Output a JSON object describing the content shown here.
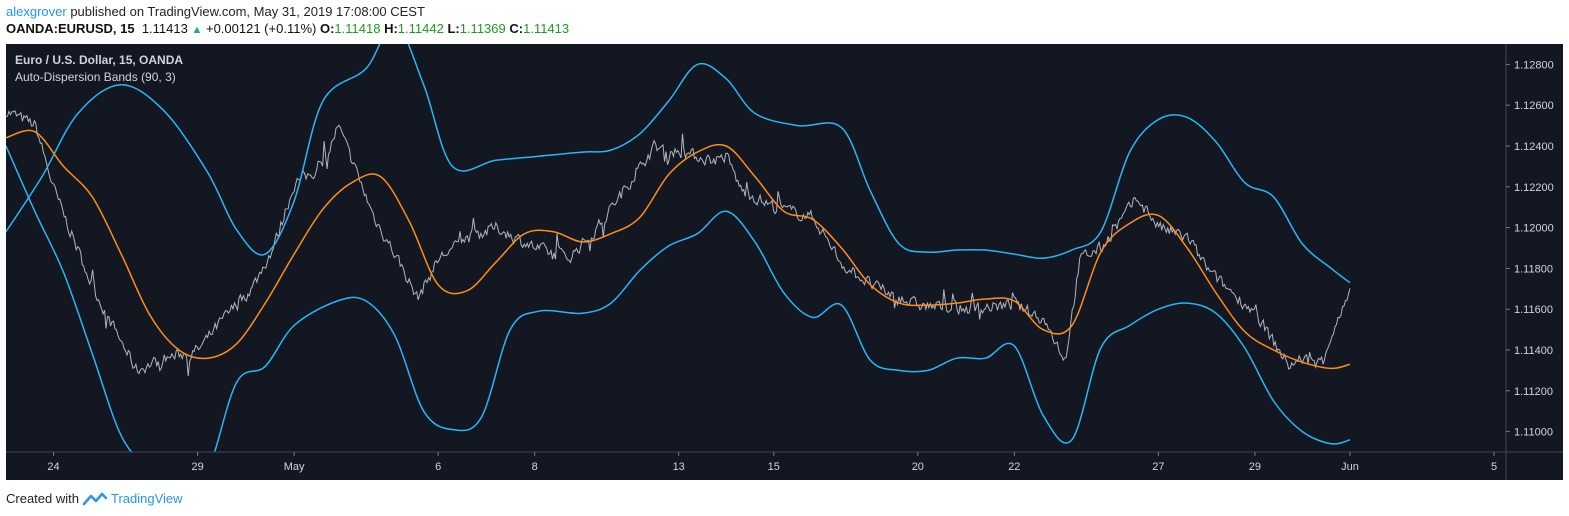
{
  "header": {
    "author": "alexgrover",
    "published_text": "published on TradingView.com, May 31, 2019 17:08:00 CEST",
    "symbol": "OANDA:EURUSD, 15",
    "last": "1.11413",
    "change": "+0.00121 (+0.11%)",
    "o_label": "O:",
    "o_value": "1.11418",
    "h_label": "H:",
    "h_value": "1.11442",
    "l_label": "L:",
    "l_value": "1.11369",
    "c_label": "C:",
    "c_value": "1.11413"
  },
  "legend": {
    "title": "Euro / U.S. Dollar, 15, OANDA",
    "indicator": "Auto-Dispersion Bands (90, 3)"
  },
  "footer": {
    "created_with": "Created with",
    "brand": "TradingView"
  },
  "colors": {
    "background": "#131722",
    "price": "#b2b5be",
    "upper_band": "#29b6f6",
    "lower_band": "#29b6f6",
    "mid_band": "#ff8c1a",
    "axis_text": "#d1d4dc"
  },
  "chart_data": {
    "type": "line",
    "ylim": [
      1.109,
      1.129
    ],
    "y_ticks": [
      "1.12800",
      "1.12600",
      "1.12400",
      "1.12200",
      "1.12000",
      "1.11800",
      "1.11600",
      "1.11400",
      "1.11200",
      "1.11000"
    ],
    "x_ticks": [
      "24",
      "29",
      "May",
      "6",
      "8",
      "13",
      "15",
      "20",
      "22",
      "27",
      "29",
      "Jun",
      "5"
    ],
    "x_tick_pos": [
      0.33,
      1.33,
      2,
      3,
      3.67,
      4.67,
      5.33,
      6.33,
      7,
      8,
      8.67,
      9.33,
      10.33
    ],
    "x_range": [
      0,
      10.33
    ],
    "series": [
      {
        "key": "upper",
        "x": [
          0,
          0.25,
          0.5,
          0.8,
          1.1,
          1.4,
          1.6,
          1.8,
          2.0,
          2.2,
          2.5,
          2.7,
          2.9,
          3.1,
          3.4,
          3.7,
          4.0,
          4.2,
          4.4,
          4.6,
          4.8,
          5.0,
          5.2,
          5.5,
          5.8,
          6.0,
          6.2,
          6.4,
          6.6,
          6.8,
          7.0,
          7.2,
          7.4,
          7.6,
          7.8,
          8.0,
          8.2,
          8.4,
          8.6,
          8.8,
          9.0,
          9.2,
          9.33
        ],
        "values": [
          1.1198,
          1.1225,
          1.1256,
          1.127,
          1.1257,
          1.1227,
          1.1199,
          1.1187,
          1.1213,
          1.1262,
          1.1278,
          1.13,
          1.127,
          1.123,
          1.1233,
          1.1235,
          1.1237,
          1.1238,
          1.1246,
          1.1262,
          1.128,
          1.1273,
          1.1256,
          1.125,
          1.1249,
          1.1218,
          1.1192,
          1.1188,
          1.1189,
          1.1189,
          1.1187,
          1.1185,
          1.1189,
          1.1198,
          1.1237,
          1.1253,
          1.1254,
          1.1242,
          1.1222,
          1.1215,
          1.1192,
          1.118,
          1.1173
        ]
      },
      {
        "key": "lower",
        "x": [
          0,
          0.2,
          0.4,
          0.6,
          0.8,
          1.0,
          1.2,
          1.4,
          1.6,
          1.8,
          2.0,
          2.3,
          2.5,
          2.7,
          2.9,
          3.1,
          3.3,
          3.5,
          3.7,
          4.0,
          4.2,
          4.4,
          4.6,
          4.8,
          5.0,
          5.2,
          5.4,
          5.6,
          5.8,
          6.0,
          6.2,
          6.4,
          6.6,
          6.8,
          7.0,
          7.2,
          7.4,
          7.6,
          7.8,
          8.0,
          8.2,
          8.4,
          8.6,
          8.8,
          9.0,
          9.2,
          9.33
        ],
        "values": [
          1.124,
          1.1208,
          1.1178,
          1.1138,
          1.1098,
          1.108,
          1.106,
          1.108,
          1.1124,
          1.1132,
          1.1152,
          1.1164,
          1.1164,
          1.1147,
          1.111,
          1.1101,
          1.1107,
          1.115,
          1.1159,
          1.1158,
          1.1163,
          1.1179,
          1.1191,
          1.1197,
          1.1208,
          1.1193,
          1.1168,
          1.1156,
          1.1162,
          1.1135,
          1.113,
          1.113,
          1.1136,
          1.1136,
          1.1142,
          1.1108,
          1.1096,
          1.1141,
          1.1152,
          1.116,
          1.1163,
          1.1158,
          1.1141,
          1.1115,
          1.11,
          1.1094,
          1.1096
        ]
      },
      {
        "key": "mid",
        "x": [
          0,
          0.2,
          0.4,
          0.6,
          0.8,
          1.0,
          1.2,
          1.4,
          1.6,
          1.8,
          2.0,
          2.2,
          2.4,
          2.6,
          2.8,
          3.0,
          3.2,
          3.4,
          3.6,
          3.8,
          4.0,
          4.2,
          4.4,
          4.6,
          4.8,
          5.0,
          5.2,
          5.4,
          5.6,
          5.8,
          6.0,
          6.2,
          6.4,
          6.6,
          6.8,
          7.0,
          7.2,
          7.4,
          7.6,
          7.8,
          8.0,
          8.2,
          8.4,
          8.6,
          8.8,
          9.0,
          9.2,
          9.33
        ],
        "values": [
          1.1244,
          1.1247,
          1.123,
          1.1215,
          1.1187,
          1.1157,
          1.114,
          1.1136,
          1.1143,
          1.1163,
          1.1187,
          1.1209,
          1.1222,
          1.1225,
          1.1203,
          1.1172,
          1.1169,
          1.1183,
          1.1197,
          1.1198,
          1.1193,
          1.1197,
          1.1205,
          1.1226,
          1.1237,
          1.124,
          1.1225,
          1.1208,
          1.1204,
          1.119,
          1.1172,
          1.1163,
          1.1162,
          1.1163,
          1.1165,
          1.1164,
          1.115,
          1.1152,
          1.1188,
          1.1202,
          1.1206,
          1.119,
          1.1168,
          1.1149,
          1.114,
          1.1134,
          1.1131,
          1.1133
        ]
      }
    ],
    "price_anchors": {
      "x": [
        0,
        0.2,
        0.33,
        0.6,
        0.9,
        1.1,
        1.33,
        1.5,
        1.7,
        1.85,
        2.0,
        2.2,
        2.3,
        2.55,
        2.75,
        2.85,
        3.0,
        3.2,
        3.4,
        3.67,
        3.9,
        4.1,
        4.3,
        4.5,
        4.67,
        4.9,
        5.0,
        5.1,
        5.33,
        5.6,
        5.8,
        6.0,
        6.2,
        6.33,
        6.6,
        7.0,
        7.2,
        7.35,
        7.45,
        7.6,
        7.85,
        8.0,
        8.2,
        8.35,
        8.67,
        8.9,
        9.0,
        9.1,
        9.33
      ],
      "values": [
        1.1257,
        1.125,
        1.1218,
        1.117,
        1.113,
        1.1136,
        1.114,
        1.1155,
        1.117,
        1.119,
        1.1222,
        1.123,
        1.125,
        1.1205,
        1.118,
        1.1165,
        1.1185,
        1.1195,
        1.12,
        1.119,
        1.1185,
        1.12,
        1.122,
        1.124,
        1.1237,
        1.1233,
        1.1235,
        1.1218,
        1.121,
        1.1205,
        1.1182,
        1.1172,
        1.1165,
        1.1162,
        1.116,
        1.1162,
        1.1155,
        1.1135,
        1.1185,
        1.119,
        1.1215,
        1.12,
        1.1195,
        1.1178,
        1.1158,
        1.1132,
        1.1136,
        1.1132,
        1.1168
      ]
    }
  }
}
